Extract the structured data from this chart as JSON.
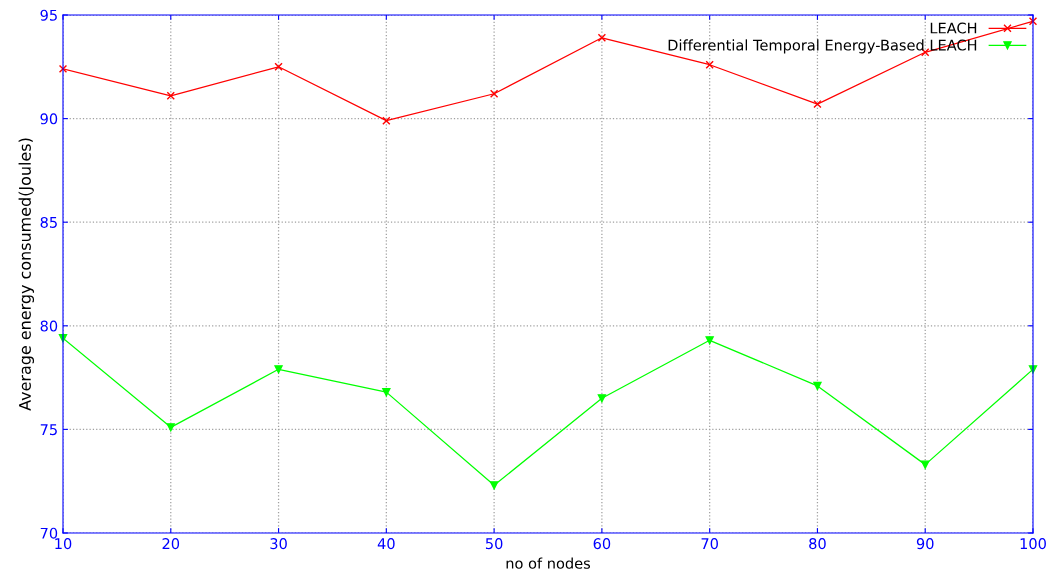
{
  "chart_data": {
    "type": "line",
    "xlabel": "no of nodes",
    "ylabel": "Average energy consumed(Joules)",
    "x": [
      10,
      20,
      30,
      40,
      50,
      60,
      70,
      80,
      90,
      100
    ],
    "series": [
      {
        "name": "LEACH",
        "color": "#ff0000",
        "marker": "cross",
        "values": [
          92.4,
          91.1,
          92.5,
          89.9,
          91.2,
          93.9,
          92.6,
          90.7,
          93.2,
          94.7
        ]
      },
      {
        "name": "Differential Temporal Energy-Based LEACH",
        "color": "#00ff00",
        "marker": "triangle",
        "values": [
          79.4,
          75.1,
          77.9,
          76.8,
          72.3,
          76.5,
          79.3,
          77.1,
          73.3,
          77.9
        ]
      }
    ],
    "xlim": [
      10,
      100
    ],
    "xticks": [
      10,
      20,
      30,
      40,
      50,
      60,
      70,
      80,
      90,
      100
    ],
    "ylim": [
      70,
      95
    ],
    "yticks": [
      70,
      75,
      80,
      85,
      90,
      95
    ],
    "grid": true,
    "legend": "top right",
    "line_style": "solid"
  }
}
